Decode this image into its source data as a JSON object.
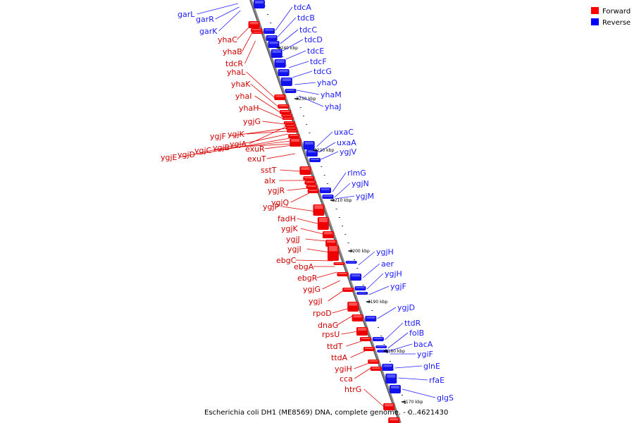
{
  "caption": "Escherichia coli DH1 (ME8569) DNA, complete genome. - 0..4621430",
  "legend": [
    {
      "label": "Forward",
      "color": "#ff0000"
    },
    {
      "label": "Reverse",
      "color": "#0000ff"
    }
  ],
  "ticks": [
    "3240 kbp",
    "3230 kbp",
    "3220 kbp",
    "3210 kbp",
    "3200 kbp",
    "3190 kbp",
    "3180 kbp",
    "3170 kbp"
  ],
  "forward_labels": [
    "yhaC",
    "yhaB",
    "tdcR",
    "yhaL",
    "yhaK",
    "yhaI",
    "yhaH",
    "ygjG",
    "ygjF",
    "ygjK",
    "ygjE",
    "ygjD",
    "ygjC",
    "ygjB",
    "ygjA",
    "exuR",
    "exuT",
    "sstT",
    "alx",
    "ygjR",
    "ygjQ",
    "ygjP",
    "fadH",
    "ygjK",
    "ygjJ",
    "ygjI",
    "ebgC",
    "ebgA",
    "ebgR",
    "ygjG",
    "ygjI",
    "rpoD",
    "dnaG",
    "rpsU",
    "ttdT",
    "ttdA",
    "ygiH",
    "cca",
    "htrG"
  ],
  "reverse_labels": [
    "garL",
    "garR",
    "garK",
    "tdcA",
    "tdcB",
    "tdcC",
    "tdcD",
    "tdcE",
    "tdcF",
    "tdcG",
    "yhaO",
    "yhaM",
    "yhaJ",
    "uxaC",
    "uxaA",
    "ygjV",
    "rlmG",
    "ygjN",
    "ygjM",
    "ygjH",
    "aer",
    "ygjH",
    "ygjF",
    "ygjD",
    "ttdR",
    "folB",
    "bacA",
    "ygiF",
    "glnE",
    "rfaE",
    "glgS"
  ]
}
